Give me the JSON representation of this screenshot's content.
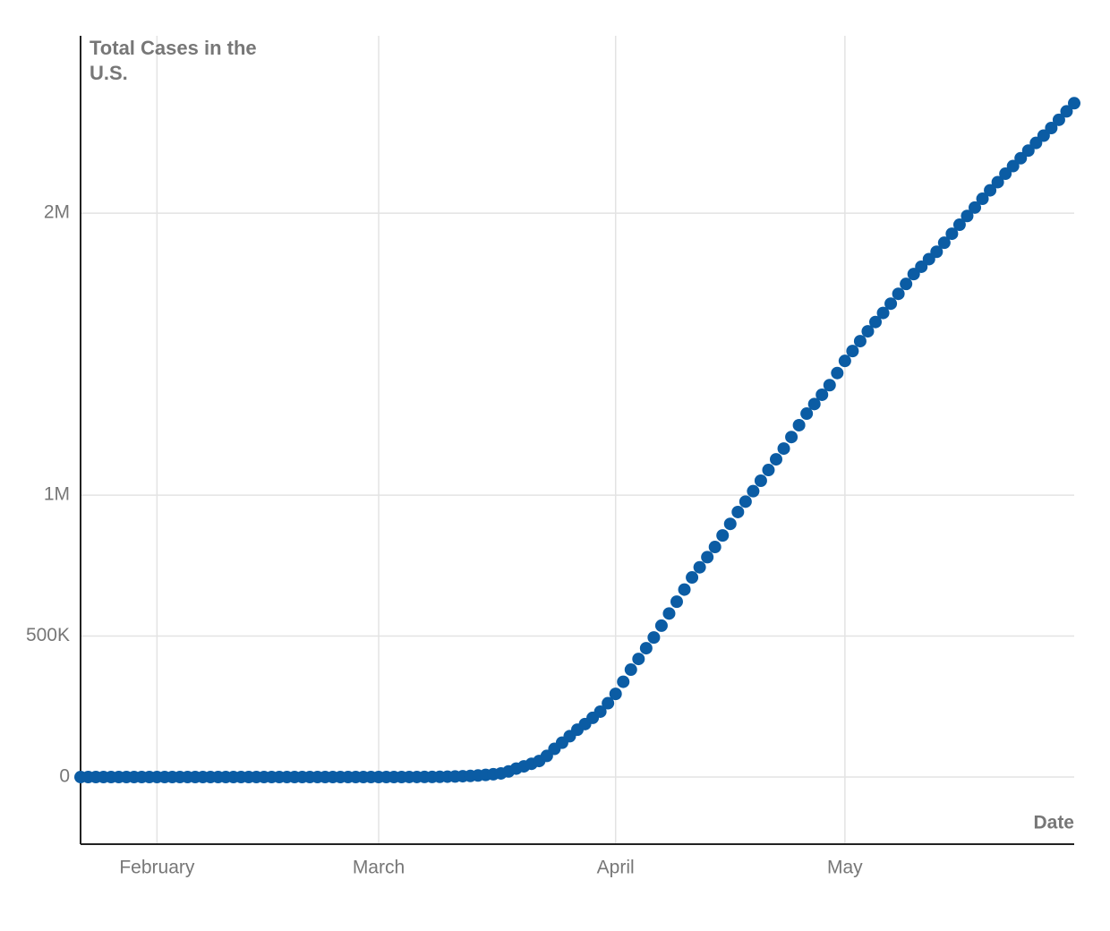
{
  "chart_data": {
    "type": "scatter",
    "title": "Total Cases in the U.S.",
    "x_label": "Date",
    "x": [
      0,
      1,
      2,
      3,
      4,
      5,
      6,
      7,
      8,
      9,
      10,
      11,
      12,
      13,
      14,
      15,
      16,
      17,
      18,
      19,
      20,
      21,
      22,
      23,
      24,
      25,
      26,
      27,
      28,
      29,
      30,
      31,
      32,
      33,
      34,
      35,
      36,
      37,
      38,
      39,
      40,
      41,
      42,
      43,
      44,
      45,
      46,
      47,
      48,
      49,
      50,
      51,
      52,
      53,
      54,
      55,
      56,
      57,
      58,
      59,
      60,
      61,
      62,
      63,
      64,
      65,
      66,
      67,
      68,
      69,
      70,
      71,
      72,
      73,
      74,
      75,
      76,
      77,
      78,
      79,
      80,
      81,
      82,
      83,
      84,
      85,
      86,
      87,
      88,
      89,
      90,
      91,
      92,
      93,
      94,
      95,
      96,
      97,
      98,
      99,
      100,
      101,
      102,
      103,
      104,
      105,
      106,
      107,
      108,
      109,
      110,
      111,
      112,
      113,
      114,
      115,
      116,
      117,
      118,
      119,
      120,
      121,
      122,
      123,
      124,
      125,
      126,
      127,
      128,
      129,
      130
    ],
    "series": [
      {
        "name": "Total Cases",
        "color": "#0b5ca4",
        "values": [
          1,
          1,
          2,
          2,
          5,
          5,
          5,
          6,
          6,
          8,
          8,
          11,
          11,
          11,
          12,
          12,
          12,
          12,
          12,
          13,
          13,
          15,
          15,
          15,
          15,
          15,
          15,
          15,
          15,
          15,
          15,
          35,
          35,
          35,
          53,
          57,
          60,
          60,
          60,
          75,
          100,
          124,
          158,
          221,
          319,
          435,
          541,
          900,
          1400,
          2100,
          3000,
          4000,
          5500,
          7500,
          10000,
          13000,
          20000,
          30000,
          38000,
          47000,
          57000,
          75000,
          100000,
          122000,
          145000,
          168000,
          188000,
          210000,
          232000,
          262000,
          295000,
          338000,
          381000,
          419000,
          457000,
          495000,
          537000,
          580000,
          622000,
          665000,
          708000,
          744000,
          780000,
          816000,
          857000,
          898000,
          940000,
          977000,
          1014000,
          1051000,
          1089000,
          1127000,
          1165000,
          1206000,
          1248000,
          1289000,
          1323000,
          1356000,
          1390000,
          1433000,
          1476000,
          1511000,
          1546000,
          1581000,
          1614000,
          1646000,
          1679000,
          1714000,
          1749000,
          1784000,
          1810000,
          1837000,
          1863000,
          1895000,
          1927000,
          1959000,
          1990000,
          2020000,
          2051000,
          2081000,
          2110000,
          2140000,
          2167000,
          2195000,
          2222000,
          2249000,
          2275000,
          2302000,
          2331000,
          2361000,
          2390000
        ]
      }
    ],
    "xlim": [
      0,
      130
    ],
    "xticks": [
      {
        "value": 10,
        "label": "February"
      },
      {
        "value": 39,
        "label": "March"
      },
      {
        "value": 70,
        "label": "April"
      },
      {
        "value": 100,
        "label": "May"
      }
    ],
    "ylim": [
      -238000,
      2629000
    ],
    "yticks": [
      {
        "value": 0,
        "label": "0"
      },
      {
        "value": 500000,
        "label": "500K"
      },
      {
        "value": 1000000,
        "label": "1M"
      },
      {
        "value": 2000000,
        "label": "2M"
      }
    ],
    "grid": true
  }
}
